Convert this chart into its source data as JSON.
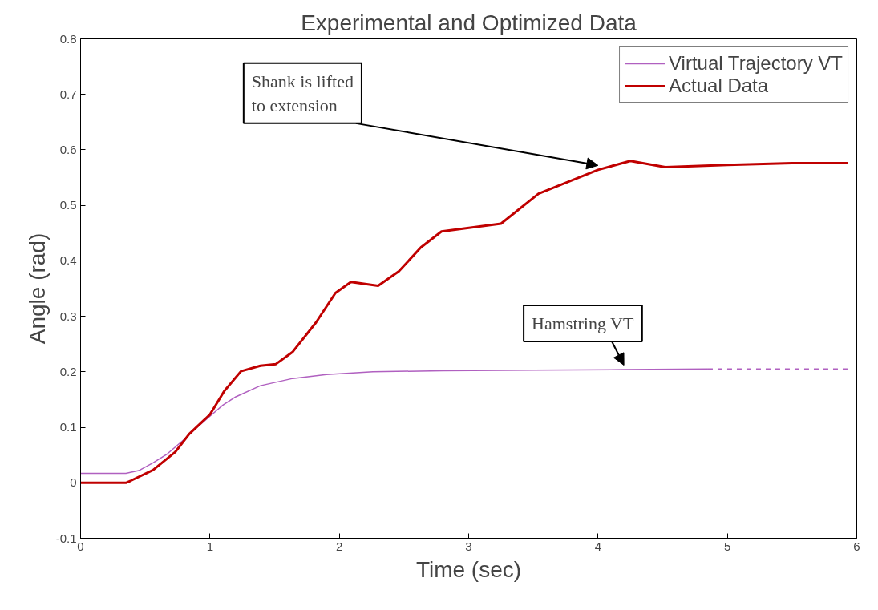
{
  "chart_data": {
    "type": "line",
    "title": "Experimental and Optimized Data",
    "xlabel": "Time (sec)",
    "ylabel": "Angle (rad)",
    "xlim": [
      0,
      6
    ],
    "ylim": [
      -0.1,
      0.8
    ],
    "xticks": [
      0,
      1,
      2,
      3,
      4,
      5,
      6
    ],
    "yticks": [
      -0.1,
      0,
      0.1,
      0.2,
      0.3,
      0.4,
      0.5,
      0.6,
      0.7,
      0.8
    ],
    "grid": false,
    "legend": "top right",
    "series": [
      {
        "name": "Virtual Trajectory VT",
        "color": "#b060c0",
        "line_style": "solid",
        "x": [
          0,
          0.35,
          0.45,
          0.56,
          0.67,
          0.8,
          0.9,
          1.0,
          1.1,
          1.2,
          1.39,
          1.64,
          1.9,
          2.26,
          2.8,
          3.5,
          4.2,
          4.85
        ],
        "values": [
          0.017,
          0.017,
          0.022,
          0.036,
          0.052,
          0.078,
          0.1,
          0.12,
          0.14,
          0.155,
          0.175,
          0.188,
          0.195,
          0.2,
          0.202,
          0.203,
          0.204,
          0.205
        ]
      },
      {
        "name": "Actual Data",
        "color": "#c00000",
        "line_style": "solid",
        "x": [
          0,
          0.35,
          0.39,
          0.56,
          0.73,
          0.84,
          1.0,
          1.11,
          1.24,
          1.39,
          1.51,
          1.64,
          1.82,
          1.97,
          2.09,
          2.3,
          2.46,
          2.63,
          2.79,
          3.25,
          3.54,
          4.0,
          4.25,
          4.52,
          5.0,
          5.5,
          5.93
        ],
        "values": [
          0,
          0,
          0.004,
          0.023,
          0.055,
          0.088,
          0.123,
          0.165,
          0.201,
          0.211,
          0.214,
          0.236,
          0.289,
          0.342,
          0.362,
          0.355,
          0.381,
          0.424,
          0.453,
          0.467,
          0.521,
          0.564,
          0.58,
          0.569,
          0.573,
          0.576,
          0.576
        ]
      },
      {
        "color": "#b060c0",
        "line_style": "dashed",
        "x": [
          4.85,
          5.93
        ],
        "values": [
          0.205,
          0.205
        ]
      }
    ],
    "annotations": [
      {
        "text": "Shank is lifted\nto extension",
        "x": 4.0,
        "y": 0.564
      },
      {
        "text": "Hamstring VT",
        "x": 4.2,
        "y": 0.204
      }
    ]
  }
}
